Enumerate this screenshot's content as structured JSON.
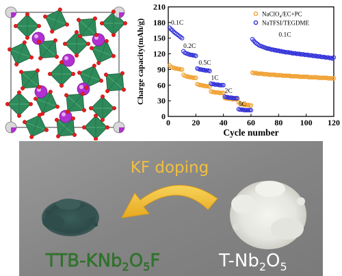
{
  "chart_data": {
    "type": "scatter",
    "xlabel": "Cycle number",
    "ylabel": "Charge capacity(mAh/g)",
    "xlim": [
      0,
      120
    ],
    "ylim": [
      0,
      210
    ],
    "xticks": [
      0,
      20,
      40,
      60,
      80,
      100,
      120
    ],
    "yticks": [
      0,
      30,
      60,
      90,
      120,
      150,
      180,
      210
    ],
    "legend_position": "top-right",
    "series": [
      {
        "name": "NaClO4/EC+PC",
        "legend_parts": [
          "NaClO",
          "4",
          "/EC+PC"
        ],
        "color": "#f0a030",
        "marker": "open-circle",
        "x": [
          1,
          2,
          3,
          4,
          5,
          6,
          7,
          8,
          9,
          10,
          11,
          12,
          13,
          14,
          15,
          16,
          17,
          18,
          19,
          20,
          21,
          22,
          23,
          24,
          25,
          26,
          27,
          28,
          29,
          30,
          31,
          32,
          33,
          34,
          35,
          36,
          37,
          38,
          39,
          40,
          41,
          42,
          43,
          44,
          45,
          46,
          47,
          48,
          49,
          50,
          51,
          52,
          53,
          54,
          55,
          56,
          57,
          58,
          59,
          60,
          61,
          62,
          63,
          64,
          65,
          66,
          67,
          68,
          69,
          70,
          71,
          72,
          73,
          74,
          75,
          76,
          77,
          78,
          79,
          80,
          81,
          82,
          83,
          84,
          85,
          86,
          87,
          88,
          89,
          90,
          91,
          92,
          93,
          94,
          95,
          96,
          97,
          98,
          99,
          100,
          101,
          102,
          103,
          104,
          105,
          106,
          107,
          108,
          109,
          110,
          111,
          112,
          113,
          114,
          115,
          116,
          117,
          118,
          119,
          120
        ],
        "y": [
          98,
          95,
          94,
          93,
          92,
          92,
          91,
          91,
          90,
          90,
          80,
          78,
          77,
          76,
          76,
          75,
          75,
          74,
          74,
          74,
          62,
          61,
          60,
          60,
          59,
          59,
          58,
          58,
          58,
          57,
          48,
          47,
          47,
          46,
          46,
          46,
          45,
          45,
          45,
          45,
          35,
          35,
          34,
          34,
          34,
          33,
          33,
          33,
          33,
          33,
          27,
          25,
          24,
          23,
          23,
          22,
          22,
          22,
          21,
          21,
          84,
          83,
          83,
          83,
          82,
          82,
          82,
          82,
          81,
          81,
          81,
          81,
          80,
          80,
          80,
          80,
          80,
          79,
          79,
          79,
          79,
          79,
          78,
          78,
          78,
          78,
          78,
          78,
          77,
          77,
          77,
          77,
          77,
          77,
          76,
          76,
          76,
          76,
          76,
          76,
          76,
          75,
          75,
          75,
          75,
          75,
          75,
          75,
          74,
          74,
          74,
          74,
          74,
          74,
          74,
          73,
          73,
          73,
          73,
          73
        ]
      },
      {
        "name": "NaTFSI/TEGDME",
        "color": "#3030d8",
        "marker": "open-circle",
        "x": [
          1,
          2,
          3,
          4,
          5,
          6,
          7,
          8,
          9,
          10,
          11,
          12,
          13,
          14,
          15,
          16,
          17,
          18,
          19,
          20,
          21,
          22,
          23,
          24,
          25,
          26,
          27,
          28,
          29,
          30,
          31,
          32,
          33,
          34,
          35,
          36,
          37,
          38,
          39,
          40,
          41,
          42,
          43,
          44,
          45,
          46,
          47,
          48,
          49,
          50,
          51,
          52,
          53,
          54,
          55,
          56,
          57,
          58,
          59,
          60,
          61,
          62,
          63,
          64,
          65,
          66,
          67,
          68,
          69,
          70,
          71,
          72,
          73,
          74,
          75,
          76,
          77,
          78,
          79,
          80,
          81,
          82,
          83,
          84,
          85,
          86,
          87,
          88,
          89,
          90,
          91,
          92,
          93,
          94,
          95,
          96,
          97,
          98,
          99,
          100,
          101,
          102,
          103,
          104,
          105,
          106,
          107,
          108,
          109,
          110,
          111,
          112,
          113,
          114,
          115,
          116,
          117,
          118,
          119,
          120
        ],
        "y": [
          170,
          167,
          165,
          162,
          160,
          158,
          156,
          154,
          152,
          150,
          125,
          122,
          121,
          120,
          119,
          118,
          118,
          117,
          117,
          116,
          92,
          91,
          90,
          90,
          89,
          89,
          88,
          88,
          88,
          87,
          63,
          62,
          62,
          61,
          61,
          61,
          60,
          60,
          60,
          60,
          38,
          37,
          37,
          36,
          36,
          36,
          35,
          35,
          35,
          35,
          14,
          13,
          13,
          13,
          12,
          12,
          12,
          12,
          12,
          12,
          148,
          145,
          142,
          140,
          138,
          136,
          135,
          134,
          133,
          132,
          131,
          130,
          130,
          129,
          128,
          128,
          127,
          127,
          126,
          126,
          125,
          125,
          124,
          124,
          123,
          123,
          123,
          122,
          122,
          121,
          121,
          121,
          120,
          120,
          120,
          119,
          119,
          119,
          118,
          118,
          118,
          117,
          117,
          117,
          116,
          116,
          116,
          115,
          115,
          115,
          114,
          114,
          114,
          113,
          113,
          113,
          112,
          112,
          111,
          113
        ]
      }
    ],
    "annotations": [
      {
        "text": "0.1C",
        "x": 2,
        "y": 176
      },
      {
        "text": "0.2C",
        "x": 11,
        "y": 131
      },
      {
        "text": "0.5C",
        "x": 22,
        "y": 99
      },
      {
        "text": "1C",
        "x": 31,
        "y": 70
      },
      {
        "text": "2C",
        "x": 41,
        "y": 45
      },
      {
        "text": "5C",
        "x": 51,
        "y": 20
      },
      {
        "text": "0.1C",
        "x": 80,
        "y": 153
      }
    ]
  },
  "photo": {
    "arrow_label": "KF doping",
    "left_label_parts": [
      "TTB-KNb",
      "2",
      "O",
      "5",
      "F"
    ],
    "right_label_parts": [
      "T-Nb",
      "2",
      "O",
      "5"
    ]
  },
  "colors": {
    "octahedron": "#2e8a5a",
    "octahedron_edge": "#1c5e3c",
    "oxygen": "#e02020",
    "cation": "#b030d0",
    "arrow": "#f2c040",
    "photo_bg": "#8a8a8a",
    "left_label": "#2e7a2a",
    "right_label": "#ffffff"
  }
}
